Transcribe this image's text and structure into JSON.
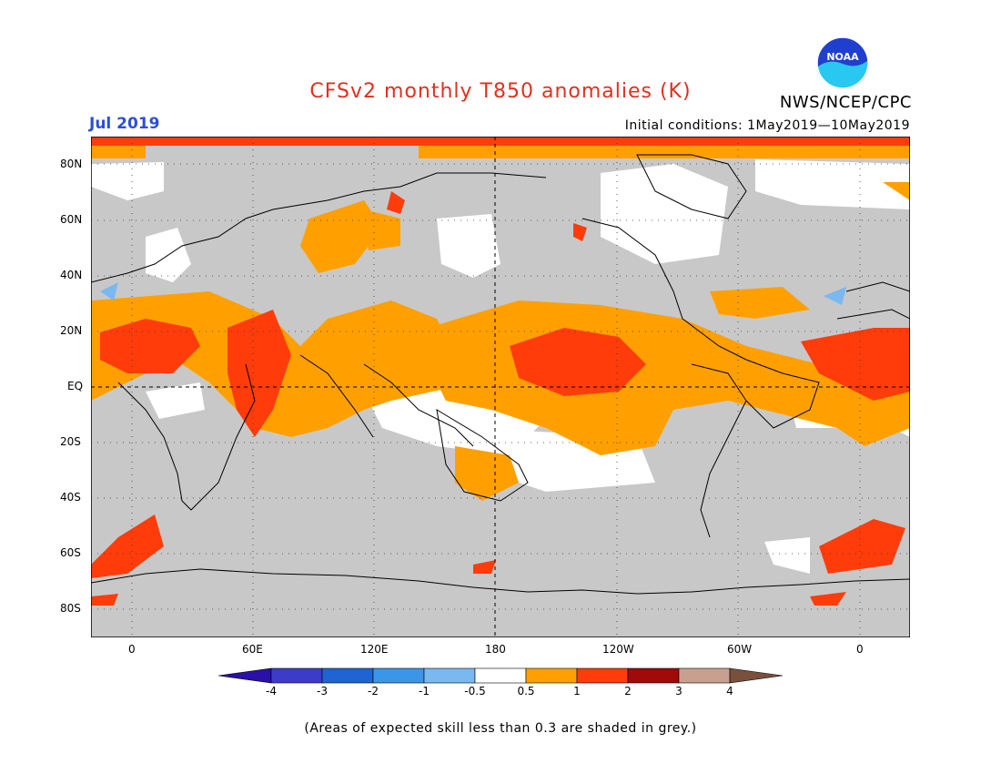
{
  "title": "CFSv2 monthly T850 anomalies (K)",
  "month": "Jul 2019",
  "initial_conditions": "Initial conditions: 1May2019—10May2019",
  "agency": "NWS/NCEP/CPC",
  "logo_text": "NOAA",
  "footnote": "(Areas of expected skill less than 0.3 are shaded in grey.)",
  "lat_labels": [
    "80N",
    "60N",
    "40N",
    "20N",
    "EQ",
    "20S",
    "40S",
    "60S",
    "80S"
  ],
  "lon_labels": [
    "0",
    "60E",
    "120E",
    "180",
    "120W",
    "60W",
    "0"
  ],
  "colorbar": {
    "labels": [
      "-4",
      "-3",
      "-2",
      "-1",
      "-0.5",
      "0.5",
      "1",
      "2",
      "3",
      "4"
    ],
    "colors": [
      "#2a0fa8",
      "#3c3cc8",
      "#1f64d0",
      "#3c96e8",
      "#7ab8f0",
      "#ffffff",
      "#ffa000",
      "#ff3c0a",
      "#a00a0a",
      "#c8a090",
      "#78503c"
    ]
  },
  "colors": {
    "land_mask_grey": "#c8c8c8",
    "positive_light": "#ffa000",
    "positive_medium": "#ff3c0a",
    "title_red": "#e0301e",
    "month_blue": "#2a4fd8"
  }
}
